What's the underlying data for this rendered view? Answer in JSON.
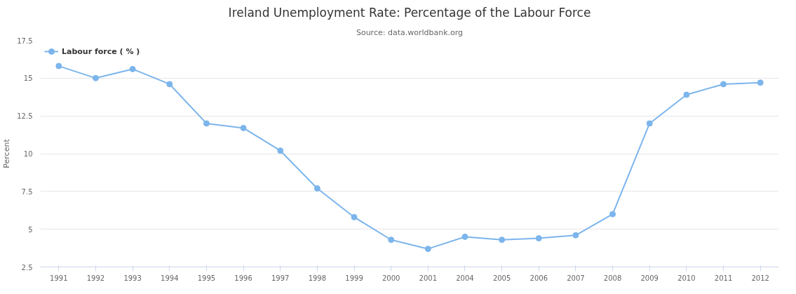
{
  "chart_data": {
    "type": "line",
    "title": "Ireland Unemployment Rate: Percentage of the Labour Force",
    "subtitle": "Source: data.worldbank.org",
    "ylabel": "Percent",
    "categories": [
      "1991",
      "1992",
      "1993",
      "1994",
      "1995",
      "1996",
      "1997",
      "1998",
      "1999",
      "2000",
      "2001",
      "2004",
      "2005",
      "2006",
      "2007",
      "2008",
      "2009",
      "2010",
      "2011",
      "2012"
    ],
    "series": [
      {
        "name": "Labour force ( % )",
        "color": "#7cb5ec",
        "values": [
          15.8,
          15.0,
          15.6,
          14.6,
          12.0,
          11.7,
          10.2,
          7.7,
          5.8,
          4.3,
          3.7,
          4.5,
          4.3,
          4.4,
          4.6,
          6.0,
          12.0,
          13.9,
          14.6,
          14.7
        ]
      }
    ],
    "ylim": [
      2.5,
      17.5
    ],
    "yticks": [
      2.5,
      5,
      7.5,
      10,
      12.5,
      15,
      17.5
    ],
    "grid": "y",
    "legend": "top left",
    "marker": "circle",
    "line_style": "solid"
  }
}
